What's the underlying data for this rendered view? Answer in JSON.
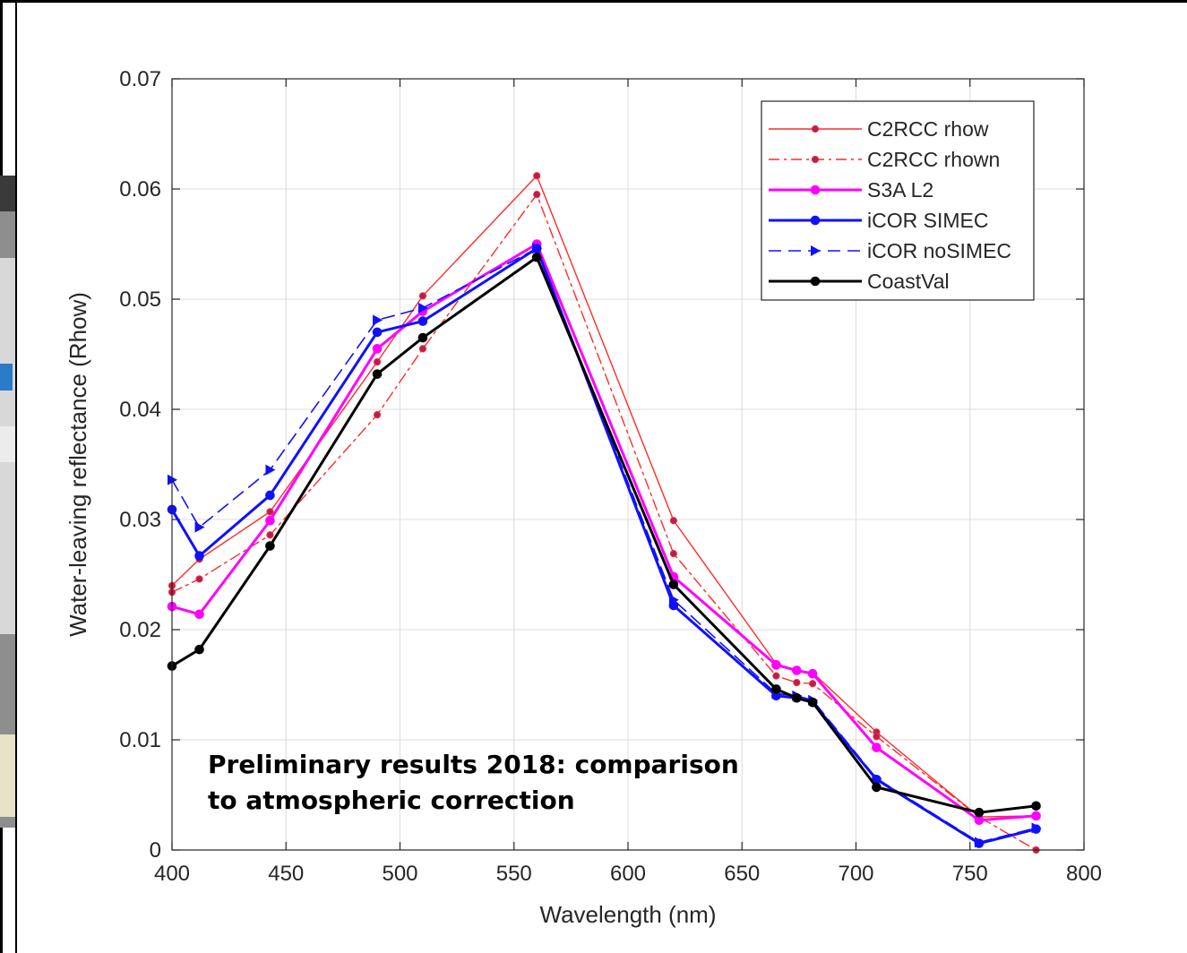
{
  "chart_data": {
    "type": "line",
    "title": "",
    "xlabel": "Wavelength (nm)",
    "ylabel": "Water-leaving reflectance (Rhow)",
    "xlim": [
      400,
      800
    ],
    "ylim": [
      0,
      0.07
    ],
    "xticks": [
      400,
      450,
      500,
      550,
      600,
      650,
      700,
      750,
      800
    ],
    "yticks": [
      0,
      0.01,
      0.02,
      0.03,
      0.04,
      0.05,
      0.06,
      0.07
    ],
    "xtick_labels": [
      "400",
      "450",
      "500",
      "550",
      "600",
      "650",
      "700",
      "750",
      "800"
    ],
    "ytick_labels": [
      "0",
      "0.01",
      "0.02",
      "0.03",
      "0.04",
      "0.05",
      "0.06",
      "0.07"
    ],
    "grid": true,
    "legend_position": "top-right",
    "annotation": [
      "Preliminary results 2018: comparison",
      "to atmospheric correction"
    ],
    "series": [
      {
        "name": "C2RCC rhow",
        "color": "#ff2a2a",
        "dash": "solid",
        "width": 1.4,
        "marker": "dot",
        "x": [
          400,
          412,
          443,
          490,
          510,
          560,
          620,
          665,
          674,
          681,
          709,
          754,
          779
        ],
        "y": [
          0.024,
          0.0264,
          0.0307,
          0.0443,
          0.0503,
          0.0612,
          0.0299,
          0.0169,
          0.0163,
          0.0161,
          0.0107,
          0.003,
          0.0031
        ]
      },
      {
        "name": "C2RCC rhown",
        "color": "#ff2a2a",
        "dash": "dashdot",
        "width": 1.4,
        "marker": "dot",
        "x": [
          400,
          412,
          443,
          490,
          510,
          560,
          620,
          665,
          674,
          681,
          709,
          754,
          779
        ],
        "y": [
          0.0234,
          0.0246,
          0.0286,
          0.0395,
          0.0455,
          0.0595,
          0.0269,
          0.0158,
          0.0152,
          0.0151,
          0.0103,
          0.003,
          0.0
        ]
      },
      {
        "name": "S3A L2",
        "color": "#ff00ff",
        "dash": "solid",
        "width": 3,
        "marker": "dot",
        "x": [
          400,
          412,
          443,
          490,
          510,
          560,
          620,
          665,
          674,
          681,
          709,
          754,
          779
        ],
        "y": [
          0.0221,
          0.0214,
          0.0299,
          0.0455,
          0.0489,
          0.055,
          0.0248,
          0.0168,
          0.0163,
          0.016,
          0.0093,
          0.0027,
          0.0031
        ]
      },
      {
        "name": "iCOR SIMEC",
        "color": "#1010ff",
        "dash": "solid",
        "width": 3,
        "marker": "dot",
        "x": [
          400,
          412,
          443,
          490,
          510,
          560,
          620,
          665,
          674,
          681,
          709,
          754,
          779
        ],
        "y": [
          0.0309,
          0.0267,
          0.0322,
          0.047,
          0.048,
          0.0546,
          0.0222,
          0.014,
          0.0138,
          0.0134,
          0.0064,
          0.0006,
          0.0019
        ]
      },
      {
        "name": "iCOR noSIMEC",
        "color": "#1010ff",
        "dash": "dashed",
        "width": 1.6,
        "marker": "triangle",
        "x": [
          400,
          412,
          443,
          490,
          510,
          560,
          620,
          665,
          674,
          681,
          709,
          754,
          779
        ],
        "y": [
          0.0336,
          0.0293,
          0.0345,
          0.0481,
          0.0492,
          0.0546,
          0.0227,
          0.0142,
          0.014,
          0.0136,
          0.0065,
          0.0007,
          0.002
        ]
      },
      {
        "name": "CoastVal",
        "color": "#000000",
        "dash": "solid",
        "width": 3,
        "marker": "dot",
        "x": [
          400,
          412,
          443,
          490,
          510,
          560,
          620,
          665,
          674,
          681,
          709,
          754,
          779
        ],
        "y": [
          0.0167,
          0.0182,
          0.0276,
          0.0432,
          0.0465,
          0.0538,
          0.0241,
          0.0146,
          0.0138,
          0.0134,
          0.0057,
          0.0034,
          0.004
        ]
      }
    ]
  }
}
